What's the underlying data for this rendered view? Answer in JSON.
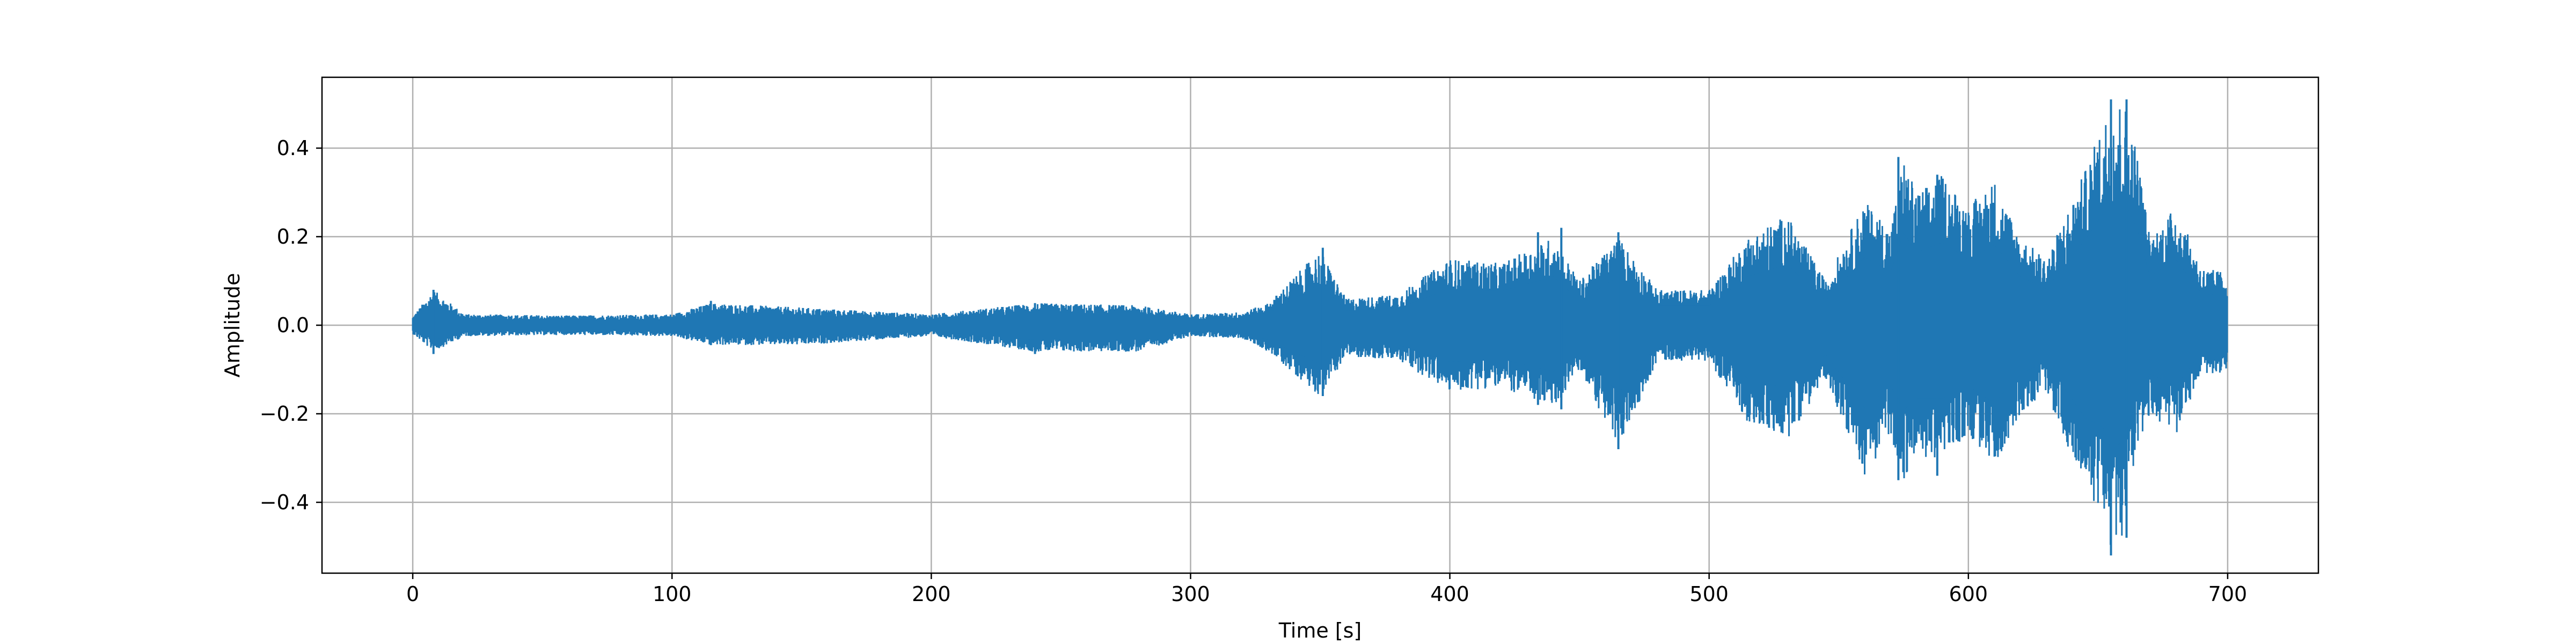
{
  "chart_data": {
    "type": "line",
    "title": "",
    "xlabel": "Time [s]",
    "ylabel": "Amplitude",
    "xlim": [
      -35,
      735
    ],
    "ylim": [
      -0.56,
      0.56
    ],
    "xticks": [
      0,
      100,
      200,
      300,
      400,
      500,
      600,
      700
    ],
    "xtick_labels": [
      "0",
      "100",
      "200",
      "300",
      "400",
      "500",
      "600",
      "700"
    ],
    "yticks": [
      -0.4,
      -0.2,
      0.0,
      0.2,
      0.4
    ],
    "ytick_labels": [
      "−0.4",
      "−0.2",
      "0.0",
      "0.2",
      "0.4"
    ],
    "grid": true,
    "legend": "none",
    "colors": {
      "series": "#1f77b4",
      "grid": "#b0b0b0",
      "axes": "#000000"
    },
    "series": [
      {
        "values_description_x": "time in seconds",
        "envelope": {
          "x": [
            0,
            8,
            20,
            60,
            100,
            115,
            150,
            200,
            240,
            280,
            300,
            320,
            330,
            350,
            360,
            380,
            400,
            420,
            440,
            450,
            465,
            480,
            500,
            515,
            530,
            545,
            560,
            570,
            575,
            580,
            590,
            600,
            610,
            620,
            630,
            645,
            652,
            655,
            660,
            665,
            670,
            680,
            690,
            700
          ],
          "upper": [
            0.02,
            0.08,
            0.025,
            0.022,
            0.025,
            0.05,
            0.04,
            0.025,
            0.05,
            0.045,
            0.025,
            0.03,
            0.05,
            0.17,
            0.06,
            0.07,
            0.15,
            0.14,
            0.2,
            0.1,
            0.2,
            0.08,
            0.08,
            0.2,
            0.25,
            0.1,
            0.28,
            0.22,
            0.38,
            0.3,
            0.34,
            0.27,
            0.33,
            0.2,
            0.15,
            0.35,
            0.46,
            0.51,
            0.51,
            0.4,
            0.2,
            0.27,
            0.13,
            0.12
          ],
          "lower": [
            -0.02,
            -0.06,
            -0.025,
            -0.022,
            -0.025,
            -0.045,
            -0.045,
            -0.025,
            -0.06,
            -0.06,
            -0.025,
            -0.03,
            -0.06,
            -0.16,
            -0.07,
            -0.08,
            -0.15,
            -0.14,
            -0.19,
            -0.1,
            -0.28,
            -0.08,
            -0.08,
            -0.22,
            -0.26,
            -0.12,
            -0.34,
            -0.25,
            -0.35,
            -0.3,
            -0.3,
            -0.25,
            -0.32,
            -0.2,
            -0.15,
            -0.38,
            -0.42,
            -0.52,
            -0.47,
            -0.3,
            -0.2,
            -0.25,
            -0.11,
            -0.11
          ]
        },
        "spikes": [
          {
            "x": 8,
            "upper": 0.08,
            "lower": -0.065
          },
          {
            "x": 115,
            "upper": 0.055,
            "lower": -0.045
          },
          {
            "x": 240,
            "upper": 0.05,
            "lower": -0.065
          },
          {
            "x": 351,
            "upper": 0.175,
            "lower": -0.16
          },
          {
            "x": 434,
            "upper": 0.21,
            "lower": -0.18
          },
          {
            "x": 443,
            "upper": 0.22,
            "lower": -0.19
          },
          {
            "x": 465,
            "upper": 0.21,
            "lower": -0.28
          },
          {
            "x": 573,
            "upper": 0.38,
            "lower": -0.35
          },
          {
            "x": 588,
            "upper": 0.34,
            "lower": -0.34
          },
          {
            "x": 655,
            "upper": 0.51,
            "lower": -0.52
          },
          {
            "x": 661,
            "upper": 0.51,
            "lower": -0.48
          }
        ]
      }
    ]
  }
}
